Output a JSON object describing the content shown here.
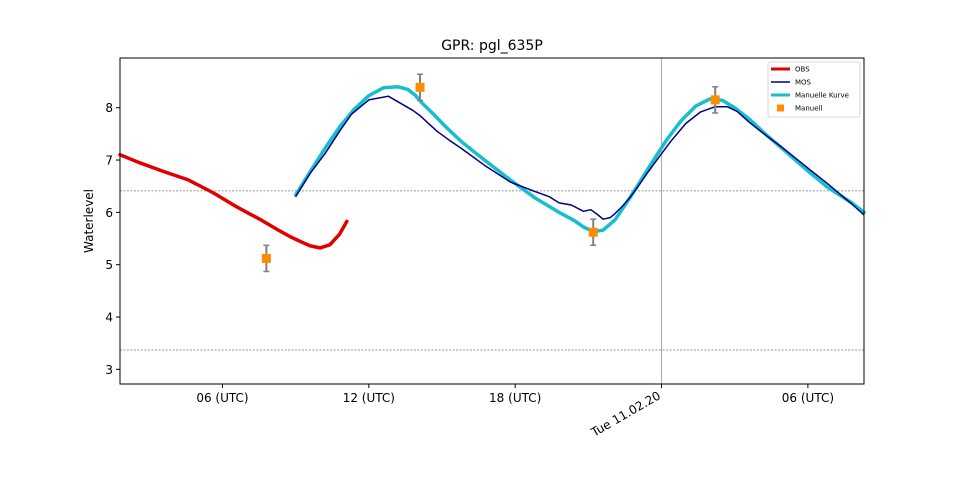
{
  "chart_data": {
    "type": "line",
    "title": "GPR: pgl_635P",
    "xlabel": "",
    "ylabel": "Waterlevel",
    "x_unit": "hours since start of plotted window",
    "xlim": [
      0,
      30.5
    ],
    "ylim": [
      2.72,
      8.95
    ],
    "y_ticks": [
      3,
      4,
      5,
      6,
      7,
      8
    ],
    "x_ticks": [
      {
        "x": 4.2,
        "label": "06 (UTC)",
        "rotated": false
      },
      {
        "x": 10.2,
        "label": "12 (UTC)",
        "rotated": false
      },
      {
        "x": 16.2,
        "label": "18 (UTC)",
        "rotated": false
      },
      {
        "x": 22.2,
        "label": "Tue 11.02.20",
        "rotated": true
      },
      {
        "x": 28.2,
        "label": "06 (UTC)",
        "rotated": false
      }
    ],
    "reference_lines_y": [
      6.41,
      3.37
    ],
    "vertical_marker_x": 22.2,
    "grid": false,
    "legend_position": "top-right",
    "series": [
      {
        "name": "OBS",
        "color": "#e00000",
        "kind": "line",
        "x": [
          0,
          0.8,
          1.8,
          2.8,
          3.8,
          4.8,
          5.8,
          6.5,
          7.0,
          7.5,
          7.8,
          8.2,
          8.6,
          9.0,
          9.3
        ],
        "y": [
          7.1,
          6.95,
          6.78,
          6.62,
          6.38,
          6.1,
          5.85,
          5.66,
          5.53,
          5.42,
          5.36,
          5.32,
          5.38,
          5.58,
          5.83
        ]
      },
      {
        "name": "MOS",
        "color": "#000080",
        "kind": "line",
        "x": [
          7.2,
          7.8,
          8.4,
          9.0,
          9.5,
          10.2,
          11.0,
          12.0,
          12.3,
          12.6,
          13.0,
          13.5,
          14.0,
          15.0,
          16.0,
          17.0,
          17.6,
          18.0,
          18.5,
          19.0,
          19.3,
          19.6,
          19.8,
          20.1,
          20.3,
          20.6,
          20.9,
          21.2,
          21.6,
          22.1,
          22.6,
          23.2,
          23.8,
          24.4,
          24.9,
          25.3,
          25.8,
          26.4,
          27.2,
          28.0,
          29.0,
          30.0,
          30.5
        ],
        "y": [
          6.3,
          6.75,
          7.12,
          7.55,
          7.88,
          8.15,
          8.22,
          7.95,
          7.85,
          7.72,
          7.55,
          7.38,
          7.22,
          6.88,
          6.58,
          6.4,
          6.3,
          6.18,
          6.14,
          6.02,
          6.05,
          5.95,
          5.87,
          5.9,
          5.98,
          6.12,
          6.28,
          6.47,
          6.74,
          7.06,
          7.37,
          7.7,
          7.92,
          8.02,
          8.02,
          7.93,
          7.72,
          7.5,
          7.22,
          6.92,
          6.55,
          6.16,
          5.95
        ]
      },
      {
        "name": "Manuelle Kurve",
        "color": "#17becf",
        "kind": "line",
        "x": [
          7.2,
          7.8,
          8.4,
          9.0,
          9.6,
          10.2,
          10.8,
          11.4,
          11.8,
          12.1,
          12.4,
          12.8,
          13.3,
          14.0,
          15.0,
          16.0,
          17.0,
          18.0,
          18.6,
          19.0,
          19.4,
          19.8,
          20.3,
          21.0,
          21.7,
          22.4,
          23.0,
          23.6,
          24.2,
          24.7,
          25.2,
          25.8,
          26.5,
          27.3,
          28.1,
          29.0,
          30.0,
          30.5
        ],
        "y": [
          6.33,
          6.78,
          7.22,
          7.63,
          7.97,
          8.23,
          8.38,
          8.4,
          8.35,
          8.24,
          8.08,
          7.9,
          7.66,
          7.35,
          6.98,
          6.62,
          6.28,
          6.0,
          5.85,
          5.72,
          5.63,
          5.66,
          5.86,
          6.35,
          6.87,
          7.38,
          7.75,
          8.03,
          8.17,
          8.14,
          8.0,
          7.78,
          7.48,
          7.16,
          6.83,
          6.48,
          6.18,
          6.0
        ]
      },
      {
        "name": "Manuell",
        "color": "#ff8c00",
        "kind": "marker",
        "x": [
          6.0,
          12.3,
          19.4,
          24.4
        ],
        "y": [
          5.12,
          8.39,
          5.62,
          8.15
        ],
        "err": [
          0.25,
          0.25,
          0.25,
          0.25
        ]
      }
    ]
  }
}
